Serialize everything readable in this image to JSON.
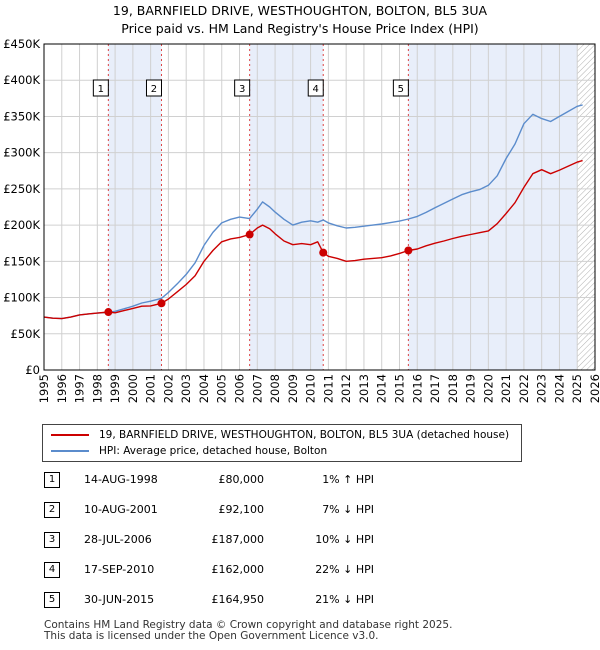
{
  "title": {
    "line1": "19, BARNFIELD DRIVE, WESTHOUGHTON, BOLTON, BL5 3UA",
    "line2": "Price paid vs. HM Land Registry's House Price Index (HPI)"
  },
  "colors": {
    "price_line": "#cc0000",
    "hpi_line": "#5b8ccc",
    "shade": "#e8eefa",
    "hatch": "#b0b0b0",
    "grid": "#d0d0d0",
    "marker_dash": "#dd4444"
  },
  "chart_data": {
    "type": "line",
    "title": "Price paid vs. HM Land Registry's House Price Index (HPI)",
    "xlabel": "",
    "ylabel": "",
    "xlim": [
      1995,
      2026
    ],
    "ylim": [
      0,
      450000
    ],
    "x_ticks": [
      1995,
      1996,
      1997,
      1998,
      1999,
      2000,
      2001,
      2002,
      2003,
      2004,
      2005,
      2006,
      2007,
      2008,
      2009,
      2010,
      2011,
      2012,
      2013,
      2014,
      2015,
      2016,
      2017,
      2018,
      2019,
      2020,
      2021,
      2022,
      2023,
      2024,
      2025,
      2026
    ],
    "y_ticks": [
      {
        "value": 0,
        "label": "£0"
      },
      {
        "value": 50000,
        "label": "£50K"
      },
      {
        "value": 100000,
        "label": "£100K"
      },
      {
        "value": 150000,
        "label": "£150K"
      },
      {
        "value": 200000,
        "label": "£200K"
      },
      {
        "value": 250000,
        "label": "£250K"
      },
      {
        "value": 300000,
        "label": "£300K"
      },
      {
        "value": 350000,
        "label": "£350K"
      },
      {
        "value": 400000,
        "label": "£400K"
      },
      {
        "value": 450000,
        "label": "£450K"
      }
    ],
    "shaded_ranges": [
      [
        1998.62,
        2001.61
      ],
      [
        2006.57,
        2010.71
      ],
      [
        2015.5,
        2025.0
      ]
    ],
    "hatched_from": 2025.0,
    "series": [
      {
        "name": "19, BARNFIELD DRIVE, WESTHOUGHTON, BOLTON, BL5 3UA (detached house)",
        "x": [
          1995.0,
          1995.5,
          1996.0,
          1996.5,
          1997.0,
          1997.5,
          1998.0,
          1998.62,
          1999.0,
          1999.5,
          2000.0,
          2000.5,
          2001.0,
          2001.61,
          2002.0,
          2002.5,
          2003.0,
          2003.5,
          2004.0,
          2004.5,
          2005.0,
          2005.5,
          2006.0,
          2006.57,
          2007.0,
          2007.3,
          2007.7,
          2008.0,
          2008.5,
          2009.0,
          2009.5,
          2010.0,
          2010.4,
          2010.71,
          2011.0,
          2011.5,
          2012.0,
          2012.5,
          2013.0,
          2013.5,
          2014.0,
          2014.5,
          2015.0,
          2015.5,
          2016.0,
          2016.5,
          2017.0,
          2017.5,
          2018.0,
          2018.5,
          2019.0,
          2019.5,
          2020.0,
          2020.5,
          2021.0,
          2021.5,
          2022.0,
          2022.5,
          2023.0,
          2023.5,
          2024.0,
          2024.5,
          2025.0,
          2025.3
        ],
        "values": [
          73000,
          71500,
          71000,
          73000,
          76000,
          77500,
          78500,
          80000,
          79000,
          82000,
          85000,
          88000,
          88500,
          92100,
          98000,
          108000,
          118000,
          130000,
          150000,
          165000,
          177000,
          181000,
          183000,
          187000,
          196000,
          200000,
          195000,
          188000,
          178000,
          173000,
          174500,
          173000,
          177000,
          162000,
          157000,
          154000,
          150000,
          151000,
          153000,
          154000,
          155000,
          157500,
          161000,
          164950,
          167000,
          171500,
          175000,
          178000,
          181500,
          184500,
          187000,
          189500,
          192000,
          202000,
          216000,
          231000,
          252000,
          271000,
          276500,
          271000,
          276000,
          281500,
          287000,
          289000
        ]
      },
      {
        "name": "HPI: Average price, detached house, Bolton",
        "x": [
          1995.0,
          1995.5,
          1996.0,
          1996.5,
          1997.0,
          1997.5,
          1998.0,
          1998.62,
          1999.0,
          1999.5,
          2000.0,
          2000.5,
          2001.0,
          2001.61,
          2002.0,
          2002.5,
          2003.0,
          2003.5,
          2004.0,
          2004.5,
          2005.0,
          2005.5,
          2006.0,
          2006.57,
          2007.0,
          2007.3,
          2007.7,
          2008.0,
          2008.5,
          2009.0,
          2009.5,
          2010.0,
          2010.4,
          2010.71,
          2011.0,
          2011.5,
          2012.0,
          2012.5,
          2013.0,
          2013.5,
          2014.0,
          2014.5,
          2015.0,
          2015.5,
          2016.0,
          2016.5,
          2017.0,
          2017.5,
          2018.0,
          2018.5,
          2019.0,
          2019.5,
          2020.0,
          2020.5,
          2021.0,
          2021.5,
          2022.0,
          2022.5,
          2023.0,
          2023.5,
          2024.0,
          2024.5,
          2025.0,
          2025.3
        ],
        "values": [
          73000,
          71500,
          71000,
          73000,
          76000,
          77500,
          78500,
          79500,
          81000,
          84500,
          88000,
          92500,
          95000,
          99000,
          107000,
          119000,
          132000,
          148000,
          172000,
          190000,
          203000,
          208000,
          211000,
          209000,
          222000,
          232000,
          225000,
          218000,
          208000,
          200000,
          204000,
          206000,
          204000,
          207000,
          203000,
          199000,
          196000,
          197000,
          198500,
          200000,
          201500,
          203500,
          205500,
          208500,
          212000,
          217500,
          224000,
          230000,
          236000,
          242000,
          246000,
          249000,
          255000,
          268000,
          292000,
          312000,
          340000,
          353000,
          347000,
          343000,
          350000,
          357000,
          364000,
          366000
        ]
      }
    ],
    "sales": [
      {
        "id": "1",
        "x": 1998.62,
        "value": 80000
      },
      {
        "id": "2",
        "x": 2001.61,
        "value": 92100
      },
      {
        "id": "3",
        "x": 2006.57,
        "value": 187000
      },
      {
        "id": "4",
        "x": 2010.71,
        "value": 162000
      },
      {
        "id": "5",
        "x": 2015.5,
        "value": 164950
      }
    ]
  },
  "legend": {
    "price_label": "19, BARNFIELD DRIVE, WESTHOUGHTON, BOLTON, BL5 3UA (detached house)",
    "hpi_label": "HPI: Average price, detached house, Bolton"
  },
  "sales_table": [
    {
      "num": "1",
      "date": "14-AUG-1998",
      "price": "£80,000",
      "hpi": "1% ↑ HPI"
    },
    {
      "num": "2",
      "date": "10-AUG-2001",
      "price": "£92,100",
      "hpi": "7% ↓ HPI"
    },
    {
      "num": "3",
      "date": "28-JUL-2006",
      "price": "£187,000",
      "hpi": "10% ↓ HPI"
    },
    {
      "num": "4",
      "date": "17-SEP-2010",
      "price": "£162,000",
      "hpi": "22% ↓ HPI"
    },
    {
      "num": "5",
      "date": "30-JUN-2015",
      "price": "£164,950",
      "hpi": "21% ↓ HPI"
    }
  ],
  "footer": {
    "line1": "Contains HM Land Registry data © Crown copyright and database right 2025.",
    "line2": "This data is licensed under the Open Government Licence v3.0."
  }
}
